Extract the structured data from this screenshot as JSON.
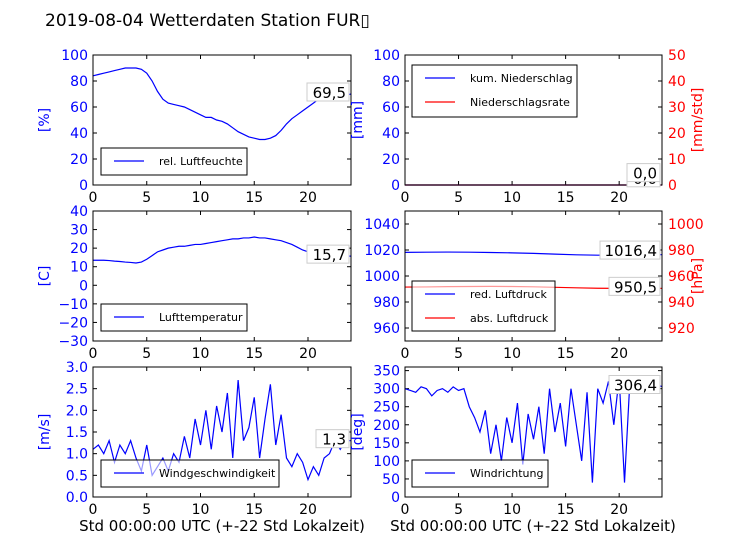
{
  "title": "2019-08-04 Wetterdaten Station FUR▯",
  "xlabel": "Std 00:00:00 UTC (+-22 Std Lokalzeit)",
  "colors": {
    "primary": "#0000ff",
    "secondary": "#ff0000",
    "axis": "#000000",
    "label_box": "#cccccc"
  },
  "chart_data": [
    {
      "type": "line",
      "xlim": [
        0,
        24
      ],
      "ylim": [
        0,
        100
      ],
      "yticks": [
        "0",
        "20",
        "40",
        "60",
        "80",
        "100"
      ],
      "xticks": [
        "0",
        "5",
        "10",
        "15",
        "20"
      ],
      "ylabel": "[%]",
      "legend": [
        "rel. Luftfeuchte"
      ],
      "legend_loc": "lower-left",
      "value_label": "69,5",
      "series": [
        {
          "name": "rel. Luftfeuchte",
          "x": [
            0,
            0.5,
            1,
            1.5,
            2,
            2.5,
            3,
            3.5,
            4,
            4.5,
            5,
            5.5,
            6,
            6.5,
            7,
            7.5,
            8,
            8.5,
            9,
            9.5,
            10,
            10.5,
            11,
            11.5,
            12,
            12.5,
            13,
            13.5,
            14,
            14.5,
            15,
            15.5,
            16,
            16.5,
            17,
            17.5,
            18,
            18.5,
            19,
            19.5,
            20,
            20.5,
            21,
            21.5,
            22,
            22.5,
            23,
            23.5,
            24
          ],
          "y": [
            84,
            85,
            86,
            87,
            88,
            89,
            90,
            90,
            90,
            89,
            86,
            80,
            72,
            66,
            63,
            62,
            61,
            60,
            58,
            56,
            54,
            52,
            52,
            50,
            49,
            47,
            44,
            41,
            39,
            37,
            36,
            35,
            35,
            36,
            38,
            42,
            47,
            51,
            54,
            57,
            60,
            63,
            66,
            67,
            68,
            69,
            68,
            69,
            70
          ]
        }
      ]
    },
    {
      "type": "line",
      "xlim": [
        0,
        24
      ],
      "ylim": [
        0,
        100
      ],
      "ylim_right": [
        0,
        50
      ],
      "yticks": [
        "0",
        "20",
        "40",
        "60",
        "80",
        "100"
      ],
      "yticks_right": [
        "0",
        "10",
        "20",
        "30",
        "40",
        "50"
      ],
      "xticks": [
        "0",
        "5",
        "10",
        "15",
        "20"
      ],
      "ylabel": "[mm]",
      "ylabel_right": "[mm/std]",
      "legend": [
        "kum. Niederschlag",
        "Niederschlagsrate"
      ],
      "legend_loc": "top-left",
      "value_label": "0,0",
      "value_label_2": "0,0",
      "series": [
        {
          "name": "kum. Niederschlag",
          "x": [
            0,
            24
          ],
          "y": [
            0,
            0
          ]
        },
        {
          "name": "Niederschlagsrate",
          "x": [
            0,
            24
          ],
          "y": [
            0,
            0
          ]
        }
      ]
    },
    {
      "type": "line",
      "xlim": [
        0,
        24
      ],
      "ylim": [
        -30,
        40
      ],
      "yticks": [
        "−30",
        "−20",
        "−10",
        "0",
        "10",
        "20",
        "30",
        "40"
      ],
      "xticks": [
        "0",
        "5",
        "10",
        "15",
        "20"
      ],
      "ylabel": "[C]",
      "legend": [
        "Lufttemperatur"
      ],
      "legend_loc": "lower-left",
      "value_label": "15,7",
      "series": [
        {
          "name": "Lufttemperatur",
          "x": [
            0,
            0.5,
            1,
            1.5,
            2,
            2.5,
            3,
            3.5,
            4,
            4.5,
            5,
            5.5,
            6,
            6.5,
            7,
            7.5,
            8,
            8.5,
            9,
            9.5,
            10,
            10.5,
            11,
            11.5,
            12,
            12.5,
            13,
            13.5,
            14,
            14.5,
            15,
            15.5,
            16,
            16.5,
            17,
            17.5,
            18,
            18.5,
            19,
            19.5,
            20,
            20.5,
            21,
            21.5,
            22,
            22.5,
            23,
            23.5,
            24
          ],
          "y": [
            13.5,
            13.5,
            13.5,
            13.3,
            13.0,
            12.8,
            12.5,
            12.3,
            12.0,
            12.5,
            14.0,
            16.0,
            18.0,
            19.0,
            20.0,
            20.5,
            21.0,
            21.0,
            21.5,
            22.0,
            22.0,
            22.5,
            23.0,
            23.5,
            24.0,
            24.5,
            25.0,
            25.0,
            25.5,
            25.5,
            26.0,
            25.5,
            25.5,
            25.0,
            24.5,
            24.0,
            23.0,
            22.0,
            20.5,
            19.0,
            18.0,
            17.0,
            16.5,
            16.0,
            16.0,
            15.8,
            15.7,
            15.7,
            15.7
          ]
        }
      ]
    },
    {
      "type": "line",
      "xlim": [
        0,
        24
      ],
      "ylim": [
        950,
        1050
      ],
      "ylim_right": [
        910,
        1010
      ],
      "yticks": [
        "960",
        "980",
        "1000",
        "1020",
        "1040"
      ],
      "yticks_right": [
        "920",
        "940",
        "960",
        "980",
        "1000"
      ],
      "xticks": [
        "0",
        "5",
        "10",
        "15",
        "20"
      ],
      "ylabel_right": "[hPa]",
      "legend": [
        "red. Luftdruck",
        "abs. Luftdruck"
      ],
      "legend_loc": "lower-left",
      "value_label": "1016,4",
      "value_label_2": "950,5",
      "series": [
        {
          "name": "red. Luftdruck",
          "x": [
            0,
            2,
            4,
            6,
            8,
            10,
            12,
            14,
            16,
            18,
            20,
            22,
            24
          ],
          "y": [
            1018.2,
            1018.3,
            1018.4,
            1018.3,
            1018.1,
            1017.8,
            1017.4,
            1016.8,
            1016.3,
            1016.0,
            1016.2,
            1016.4,
            1016.4
          ]
        },
        {
          "name": "abs. Luftdruck",
          "x": [
            0,
            2,
            4,
            6,
            8,
            10,
            12,
            14,
            16,
            18,
            20,
            22,
            24
          ],
          "y": [
            951.5,
            951.6,
            951.8,
            951.9,
            952.0,
            951.9,
            951.7,
            951.3,
            950.9,
            950.6,
            950.5,
            950.5,
            950.5
          ]
        }
      ]
    },
    {
      "type": "line",
      "xlim": [
        0,
        24
      ],
      "ylim": [
        0,
        3.0
      ],
      "yticks": [
        "0.0",
        "0.5",
        "1.0",
        "1.5",
        "2.0",
        "2.5",
        "3.0"
      ],
      "xticks": [
        "0",
        "5",
        "10",
        "15",
        "20"
      ],
      "ylabel": "[m/s]",
      "legend": [
        "Windgeschwindigkeit"
      ],
      "legend_loc": "lower-left",
      "value_label": "1,3",
      "series": [
        {
          "name": "Windgeschwindigkeit",
          "x": [
            0,
            0.5,
            1,
            1.5,
            2,
            2.5,
            3,
            3.5,
            4,
            4.5,
            5,
            5.5,
            6,
            6.5,
            7,
            7.5,
            8,
            8.5,
            9,
            9.5,
            10,
            10.5,
            11,
            11.5,
            12,
            12.5,
            13,
            13.5,
            14,
            14.5,
            15,
            15.5,
            16,
            16.5,
            17,
            17.5,
            18,
            18.5,
            19,
            19.5,
            20,
            20.5,
            21,
            21.5,
            22,
            22.5,
            23,
            23.5,
            24
          ],
          "y": [
            1.1,
            1.2,
            1.0,
            1.3,
            0.8,
            1.2,
            1.0,
            1.3,
            0.9,
            0.6,
            1.2,
            0.5,
            0.7,
            0.9,
            0.6,
            1.0,
            0.8,
            1.4,
            0.9,
            1.8,
            1.2,
            2.0,
            1.1,
            2.1,
            1.5,
            2.4,
            0.9,
            2.7,
            1.3,
            1.6,
            2.3,
            0.9,
            1.8,
            2.6,
            1.2,
            1.9,
            0.9,
            0.7,
            1.0,
            0.8,
            0.4,
            0.7,
            0.5,
            0.9,
            1.0,
            1.3,
            1.1,
            1.3,
            1.3
          ]
        }
      ]
    },
    {
      "type": "line",
      "xlim": [
        0,
        24
      ],
      "ylim": [
        0,
        360
      ],
      "yticks": [
        "0",
        "50",
        "100",
        "150",
        "200",
        "250",
        "300",
        "350"
      ],
      "xticks": [
        "0",
        "5",
        "10",
        "15",
        "20"
      ],
      "ylabel": "[deg]",
      "legend": [
        "Windrichtung"
      ],
      "legend_loc": "lower-left",
      "value_label": "306,4",
      "series": [
        {
          "name": "Windrichtung",
          "x": [
            0,
            0.5,
            1,
            1.5,
            2,
            2.5,
            3,
            3.5,
            4,
            4.5,
            5,
            5.5,
            6,
            6.5,
            7,
            7.5,
            8,
            8.5,
            9,
            9.5,
            10,
            10.5,
            11,
            11.5,
            12,
            12.5,
            13,
            13.5,
            14,
            14.5,
            15,
            15.5,
            16,
            16.5,
            17,
            17.5,
            18,
            18.5,
            19,
            19.5,
            20,
            20.5,
            21,
            21.5,
            22,
            22.5,
            23,
            23.5,
            24
          ],
          "y": [
            300,
            295,
            290,
            305,
            300,
            280,
            295,
            300,
            290,
            305,
            295,
            300,
            250,
            220,
            180,
            240,
            120,
            200,
            100,
            220,
            150,
            260,
            90,
            230,
            160,
            250,
            120,
            300,
            180,
            260,
            140,
            300,
            200,
            100,
            290,
            40,
            300,
            260,
            320,
            200,
            330,
            40,
            320,
            300,
            310,
            320,
            300,
            310,
            306
          ]
        }
      ]
    }
  ]
}
